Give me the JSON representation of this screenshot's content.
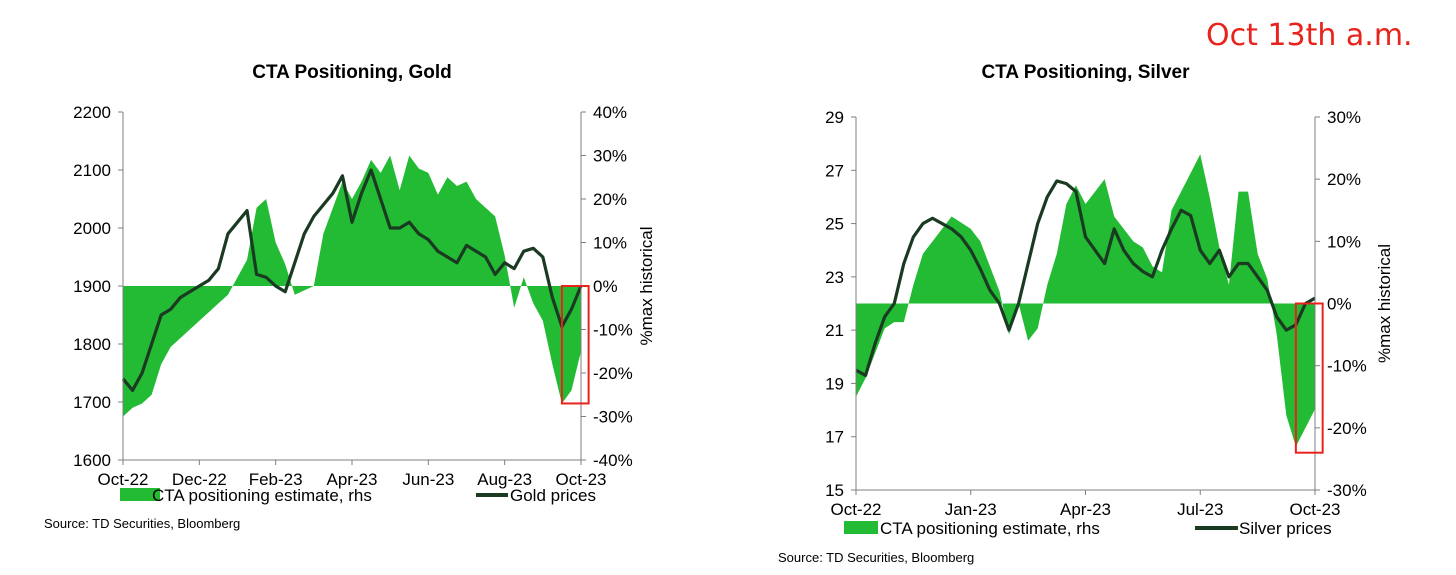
{
  "annotation": "Oct 13th a.m.",
  "colors": {
    "area": "#22bb33",
    "price_line": "#1a3a22",
    "highlight_box": "#e8231c",
    "axis": "#7f7f7f"
  },
  "chart_data": [
    {
      "type": "area",
      "title": "CTA Positioning, Gold",
      "source": "Source: TD Securities, Bloomberg",
      "x_ticks": [
        "Oct-22",
        "Dec-22",
        "Feb-23",
        "Apr-23",
        "Jun-23",
        "Aug-23",
        "Oct-23"
      ],
      "x_range": [
        0,
        12
      ],
      "ylabel_right": "%max historical",
      "y_left": {
        "min": 1600,
        "max": 2200,
        "ticks": [
          1600,
          1700,
          1800,
          1900,
          2000,
          2100,
          2200
        ],
        "tick_labels": [
          "1600",
          "1700",
          "1800",
          "1900",
          "2000",
          "2100",
          "2200"
        ]
      },
      "y_right": {
        "min": -40,
        "max": 40,
        "ticks": [
          -40,
          -30,
          -20,
          -10,
          0,
          10,
          20,
          30,
          40
        ],
        "tick_labels": [
          "-40%",
          "-30%",
          "-20%",
          "-10%",
          "0%",
          "10%",
          "20%",
          "30%",
          "40%"
        ]
      },
      "legend": {
        "area": "CTA positioning estimate, rhs",
        "line": "Gold prices",
        "placement": "bottom"
      },
      "series": [
        {
          "name": "CTA positioning estimate, rhs",
          "kind": "area",
          "axis": "right",
          "x": [
            0,
            0.25,
            0.5,
            0.75,
            1,
            1.25,
            1.5,
            1.75,
            2,
            2.25,
            2.5,
            2.75,
            3,
            3.25,
            3.5,
            3.75,
            4,
            4.25,
            4.5,
            4.75,
            5,
            5.25,
            5.5,
            5.75,
            6,
            6.25,
            6.5,
            6.75,
            7,
            7.25,
            7.5,
            7.75,
            8,
            8.25,
            8.5,
            8.75,
            9,
            9.25,
            9.5,
            9.75,
            10,
            10.25,
            10.5,
            10.75,
            11,
            11.25,
            11.5,
            11.75,
            12
          ],
          "values": [
            -30,
            -28,
            -27,
            -25,
            -18,
            -14,
            -12,
            -10,
            -8,
            -6,
            -4,
            -2,
            2,
            6,
            18,
            20,
            10,
            5,
            -2,
            -1,
            0,
            12,
            18,
            24,
            20,
            24,
            29,
            26,
            30,
            22,
            30,
            27,
            26,
            21,
            25,
            23,
            24,
            20,
            18,
            16,
            7,
            -5,
            2,
            -4,
            -8,
            -18,
            -27,
            -24,
            -15
          ]
        },
        {
          "name": "Gold prices",
          "kind": "line",
          "axis": "left",
          "x": [
            0,
            0.25,
            0.5,
            0.75,
            1,
            1.25,
            1.5,
            1.75,
            2,
            2.25,
            2.5,
            2.75,
            3,
            3.25,
            3.5,
            3.75,
            4,
            4.25,
            4.5,
            4.75,
            5,
            5.25,
            5.5,
            5.75,
            6,
            6.25,
            6.5,
            6.75,
            7,
            7.25,
            7.5,
            7.75,
            8,
            8.25,
            8.5,
            8.75,
            9,
            9.25,
            9.5,
            9.75,
            10,
            10.25,
            10.5,
            10.75,
            11,
            11.25,
            11.5,
            11.75,
            12
          ],
          "values": [
            1740,
            1720,
            1750,
            1800,
            1850,
            1860,
            1880,
            1890,
            1900,
            1910,
            1930,
            1990,
            2010,
            2030,
            1920,
            1915,
            1900,
            1890,
            1940,
            1990,
            2020,
            2040,
            2060,
            2090,
            2010,
            2060,
            2100,
            2050,
            2000,
            2000,
            2010,
            1990,
            1980,
            1960,
            1950,
            1940,
            1970,
            1960,
            1950,
            1920,
            1940,
            1930,
            1960,
            1965,
            1950,
            1880,
            1830,
            1860,
            1900
          ]
        }
      ],
      "highlight": {
        "x_range": [
          11.5,
          12.2
        ],
        "y_range": [
          -27,
          0
        ]
      }
    },
    {
      "type": "area",
      "title": "CTA Positioning, Silver",
      "source": "Source: TD Securities, Bloomberg",
      "x_ticks": [
        "Oct-22",
        "Jan-23",
        "Apr-23",
        "Jul-23",
        "Oct-23"
      ],
      "x_range": [
        0,
        12
      ],
      "ylabel_right": "%max historical",
      "y_left": {
        "min": 15,
        "max": 29,
        "ticks": [
          15,
          17,
          19,
          21,
          23,
          25,
          27,
          29
        ],
        "tick_labels": [
          "15",
          "17",
          "19",
          "21",
          "23",
          "25",
          "27",
          "29"
        ]
      },
      "y_right": {
        "min": -30,
        "max": 30,
        "ticks": [
          -30,
          -20,
          -10,
          0,
          10,
          20,
          30
        ],
        "tick_labels": [
          "-30%",
          "-20%",
          "-10%",
          "0%",
          "10%",
          "20%",
          "30%"
        ]
      },
      "legend": {
        "area": "CTA positioning estimate, rhs",
        "line": "Silver prices",
        "placement": "bottom"
      },
      "series": [
        {
          "name": "CTA positioning estimate, rhs",
          "kind": "area",
          "axis": "right",
          "x": [
            0,
            0.25,
            0.5,
            0.75,
            1,
            1.25,
            1.5,
            1.75,
            2,
            2.25,
            2.5,
            2.75,
            3,
            3.25,
            3.5,
            3.75,
            4,
            4.25,
            4.5,
            4.75,
            5,
            5.25,
            5.5,
            5.75,
            6,
            6.25,
            6.5,
            6.75,
            7,
            7.25,
            7.5,
            7.75,
            8,
            8.25,
            8.5,
            8.75,
            9,
            9.25,
            9.5,
            9.75,
            10,
            10.25,
            10.5,
            10.75,
            11,
            11.25,
            11.5,
            11.75,
            12
          ],
          "values": [
            -15,
            -12,
            -8,
            -4,
            -3,
            -3,
            3,
            8,
            10,
            12,
            14,
            13,
            12,
            10,
            6,
            2,
            -5,
            0,
            -6,
            -4,
            3,
            8,
            16,
            19,
            16,
            18,
            20,
            14,
            12,
            10,
            9,
            6,
            5,
            15,
            18,
            21,
            24,
            17,
            9,
            3,
            18,
            18,
            8,
            4,
            -5,
            -18,
            -23,
            -20,
            -17
          ]
        },
        {
          "name": "Silver prices",
          "kind": "line",
          "axis": "right_price",
          "x": [
            0,
            0.25,
            0.5,
            0.75,
            1,
            1.25,
            1.5,
            1.75,
            2,
            2.25,
            2.5,
            2.75,
            3,
            3.25,
            3.5,
            3.75,
            4,
            4.25,
            4.5,
            4.75,
            5,
            5.25,
            5.5,
            5.75,
            6,
            6.25,
            6.5,
            6.75,
            7,
            7.25,
            7.5,
            7.75,
            8,
            8.25,
            8.5,
            8.75,
            9,
            9.25,
            9.5,
            9.75,
            10,
            10.25,
            10.5,
            10.75,
            11,
            11.25,
            11.5,
            11.75,
            12
          ],
          "values": [
            19.5,
            19.3,
            20.5,
            21.5,
            22.0,
            23.5,
            24.5,
            25.0,
            25.2,
            25.0,
            24.8,
            24.5,
            24.0,
            23.3,
            22.5,
            22.0,
            21.0,
            22.0,
            23.5,
            25.0,
            26.0,
            26.6,
            26.5,
            26.2,
            24.5,
            24.0,
            23.5,
            24.8,
            24.0,
            23.5,
            23.2,
            23.0,
            24.0,
            24.8,
            25.5,
            25.3,
            24.0,
            23.5,
            24.0,
            23.0,
            23.5,
            23.5,
            23.0,
            22.5,
            21.5,
            21.0,
            21.2,
            22.0,
            22.2
          ]
        }
      ],
      "highlight": {
        "x_range": [
          11.5,
          12.2
        ],
        "y_range": [
          -24,
          0
        ]
      }
    }
  ]
}
